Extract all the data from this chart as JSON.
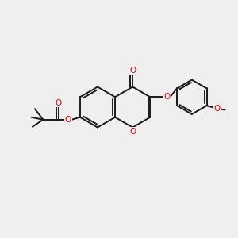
{
  "background_color": "#efefef",
  "bond_color": "#1a1a1a",
  "oxygen_color": "#ff0000",
  "linewidth": 1.4,
  "figsize": [
    3.0,
    3.0
  ],
  "dpi": 100,
  "xlim": [
    0,
    10
  ],
  "ylim": [
    0,
    10
  ]
}
